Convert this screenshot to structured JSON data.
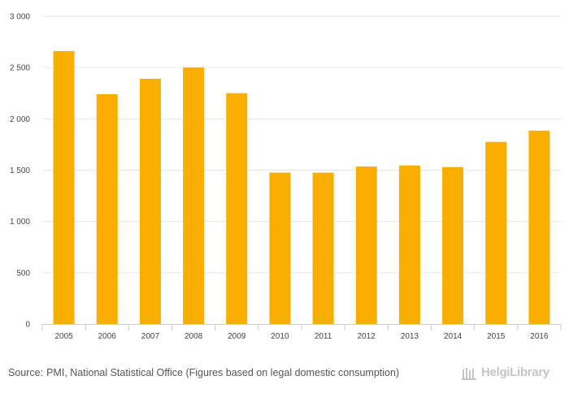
{
  "chart_data": {
    "type": "bar",
    "title": "",
    "xlabel": "",
    "ylabel": "",
    "categories": [
      "2005",
      "2006",
      "2007",
      "2008",
      "2009",
      "2010",
      "2011",
      "2012",
      "2013",
      "2014",
      "2015",
      "2016"
    ],
    "values": [
      2660,
      2240,
      2390,
      2500,
      2250,
      1475,
      1475,
      1535,
      1545,
      1530,
      1775,
      1885
    ],
    "ylim": [
      0,
      3000
    ],
    "yticks": [
      0,
      500,
      1000,
      1500,
      2000,
      2500,
      3000
    ],
    "ytick_labels": [
      "0",
      "500",
      "1 000",
      "1 500",
      "2 000",
      "2 500",
      "3 000"
    ],
    "bar_color": "#f9ae00",
    "grid": true,
    "legend": "none"
  },
  "footer": {
    "source_label": "Source:",
    "source_text": "PMI, National Statistical Office (Figures based on legal domestic consumption)",
    "logo_text": "HelgiLibrary",
    "logo_icon": "helgi-library-icon"
  }
}
